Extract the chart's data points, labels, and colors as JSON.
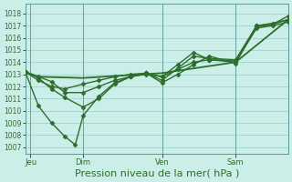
{
  "bg_color": "#cceee8",
  "plot_bg_color": "#cceee8",
  "grid_color": "#99cccc",
  "line_color": "#2d6e2d",
  "marker_color": "#2d6e2d",
  "xlabel": "Pression niveau de la mer( hPa )",
  "xlabel_fontsize": 8,
  "yticks": [
    1007,
    1008,
    1009,
    1010,
    1011,
    1012,
    1013,
    1014,
    1015,
    1016,
    1017,
    1018
  ],
  "ylim": [
    1006.5,
    1018.8
  ],
  "xlim": [
    0,
    100
  ],
  "xtick_positions": [
    2,
    22,
    52,
    80
  ],
  "xtick_labels": [
    "Jeu",
    "Dim",
    "Ven",
    "Sam"
  ],
  "vlines": [
    2,
    22,
    52,
    80
  ],
  "lines": [
    {
      "x": [
        0,
        5,
        22,
        52,
        80,
        100
      ],
      "y": [
        1013.2,
        1012.8,
        1012.7,
        1013.1,
        1014.0,
        1017.5
      ],
      "marker": null,
      "ms": 0,
      "lw": 1.3
    },
    {
      "x": [
        0,
        5,
        10,
        15,
        22,
        28,
        34,
        40,
        46,
        52,
        58,
        64,
        70,
        80,
        88,
        94,
        100
      ],
      "y": [
        1013.2,
        1012.8,
        1012.4,
        1011.5,
        1011.5,
        1012.0,
        1012.5,
        1012.8,
        1013.0,
        1012.8,
        1013.4,
        1014.0,
        1014.2,
        1014.1,
        1016.9,
        1017.1,
        1017.5
      ],
      "marker": "D",
      "ms": 2.5,
      "lw": 1.0
    },
    {
      "x": [
        0,
        5,
        10,
        15,
        22,
        28,
        34,
        40,
        46,
        52,
        58,
        64,
        70,
        80,
        88,
        94,
        100
      ],
      "y": [
        1013.2,
        1012.7,
        1011.8,
        1011.1,
        1010.3,
        1011.0,
        1012.2,
        1012.8,
        1013.1,
        1012.5,
        1013.5,
        1014.5,
        1014.3,
        1014.2,
        1017.0,
        1017.2,
        1017.5
      ],
      "marker": "D",
      "ms": 2.5,
      "lw": 1.0
    },
    {
      "x": [
        0,
        5,
        10,
        15,
        19,
        22,
        28,
        34,
        40,
        46,
        52,
        58,
        64,
        70,
        80,
        88,
        94,
        100
      ],
      "y": [
        1013.2,
        1010.4,
        1009.0,
        1007.9,
        1007.2,
        1009.6,
        1011.2,
        1012.3,
        1012.8,
        1013.1,
        1012.3,
        1013.0,
        1013.8,
        1014.5,
        1013.9,
        1017.0,
        1017.1,
        1017.8
      ],
      "marker": "D",
      "ms": 2.5,
      "lw": 1.0
    },
    {
      "x": [
        0,
        5,
        10,
        15,
        22,
        28,
        34,
        40,
        46,
        52,
        58,
        64,
        70,
        80,
        88,
        94,
        100
      ],
      "y": [
        1013.2,
        1012.5,
        1012.0,
        1011.8,
        1012.2,
        1012.5,
        1012.8,
        1013.0,
        1013.1,
        1012.8,
        1013.8,
        1014.8,
        1014.2,
        1014.0,
        1016.8,
        1017.0,
        1017.3
      ],
      "marker": "D",
      "ms": 2.5,
      "lw": 1.0
    }
  ]
}
